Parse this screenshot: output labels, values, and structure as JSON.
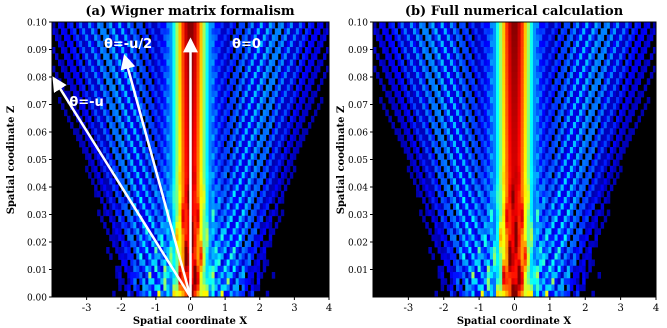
{
  "chart_data": [
    {
      "type": "heatmap",
      "title": "(a) Wigner matrix formalism",
      "xlabel": "Spatial coordinate X",
      "ylabel": "Spatial coodinate Z",
      "xlim": [
        -4,
        4
      ],
      "ylim": [
        0,
        0.1
      ],
      "x_ticks": [
        "-3",
        "-2",
        "-1",
        "0",
        "1",
        "2",
        "3",
        "4"
      ],
      "x_tick_values": [
        -3,
        -2,
        -1,
        0,
        1,
        2,
        3,
        4
      ],
      "y_ticks": [
        "0.00",
        "0.01",
        "0.02",
        "0.03",
        "0.04",
        "0.05",
        "0.06",
        "0.07",
        "0.08",
        "0.09",
        "0.10"
      ],
      "y_tick_values": [
        0,
        0.01,
        0.02,
        0.03,
        0.04,
        0.05,
        0.06,
        0.07,
        0.08,
        0.09,
        0.1
      ],
      "colormap": "jet",
      "background": "#000000",
      "beam": {
        "central_half_width": 0.8,
        "side_lobe_start": 1.0
      },
      "annotations": [
        {
          "text": "θ=0",
          "x": 1.2,
          "y": 0.0905,
          "arrow_to": [
            0.0,
            0.0935
          ]
        },
        {
          "text": "θ=-u/2",
          "x": -2.5,
          "y": 0.0905,
          "arrow_to": [
            -1.9,
            0.0875
          ]
        },
        {
          "text": "θ=-u",
          "x": -3.5,
          "y": 0.0695,
          "arrow_to": [
            -3.95,
            0.0795
          ]
        }
      ],
      "arrow_origin": [
        0.0,
        0.0
      ],
      "arrow_color": "#ffffff"
    },
    {
      "type": "heatmap",
      "title": "(b) Full numerical calculation",
      "xlabel": "Spatial coordinate X",
      "ylabel": "Spatial coodinate Z",
      "xlim": [
        -4,
        4
      ],
      "ylim": [
        0,
        0.1
      ],
      "x_ticks": [
        "-3",
        "-2",
        "-1",
        "0",
        "1",
        "2",
        "3",
        "4"
      ],
      "x_tick_values": [
        -3,
        -2,
        -1,
        0,
        1,
        2,
        3,
        4
      ],
      "y_ticks": [
        "0.01",
        "0.02",
        "0.03",
        "0.04",
        "0.05",
        "0.06",
        "0.07",
        "0.08",
        "0.09",
        "0.10"
      ],
      "y_tick_values": [
        0.01,
        0.02,
        0.03,
        0.04,
        0.05,
        0.06,
        0.07,
        0.08,
        0.09,
        0.1
      ],
      "colormap": "jet",
      "background": "#000000",
      "beam": {
        "central_half_width": 0.8,
        "side_lobe_start": 1.0
      },
      "annotations": []
    }
  ]
}
